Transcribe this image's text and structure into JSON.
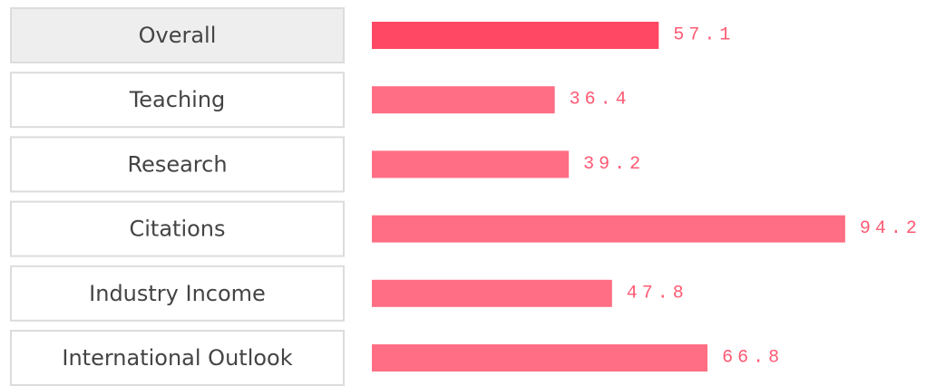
{
  "chart_data": {
    "type": "bar",
    "orientation": "horizontal",
    "categories": [
      "Overall",
      "Teaching",
      "Research",
      "Citations",
      "Industry Income",
      "International Outlook"
    ],
    "values": [
      57.1,
      36.4,
      39.2,
      94.2,
      47.8,
      66.8
    ],
    "colors": [
      "#ff4863",
      "#ff6e84",
      "#ff6e84",
      "#ff6e84",
      "#ff6e84",
      "#ff6e84"
    ],
    "label_color": "#ff5a73"
  }
}
